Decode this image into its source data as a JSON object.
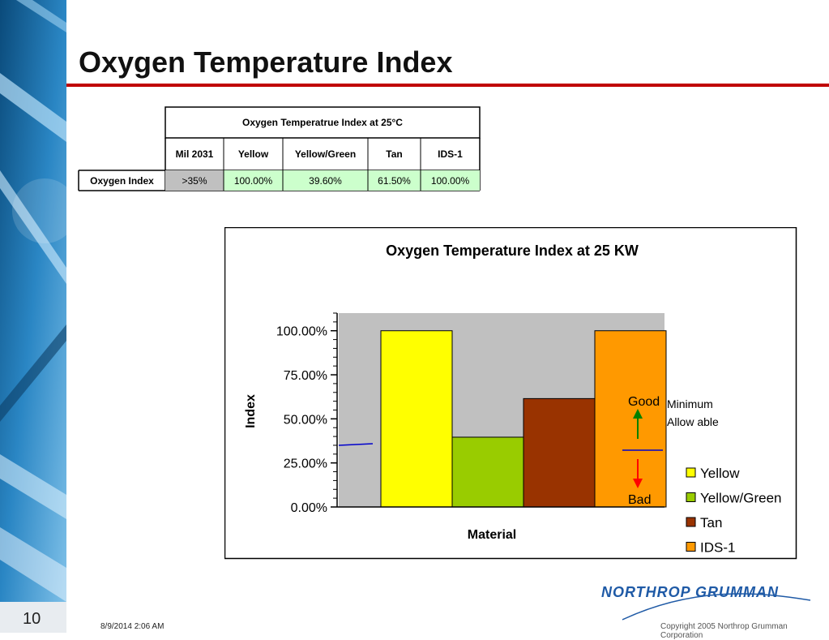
{
  "slide": {
    "page_number": "10",
    "title": "Oxygen Temperature Index",
    "date": "8/9/2014 2:06 AM",
    "copyright": "Copyright 2005 Northrop Grumman Corporation",
    "logo_text": "NORTHROP GRUMMAN"
  },
  "table": {
    "header": "Oxygen Temperatrue Index at 25°C",
    "columns": [
      "Mil 2031",
      "Yellow",
      "Yellow/Green",
      "Tan",
      "IDS-1"
    ],
    "row_label": "Oxygen Index",
    "values": [
      ">35%",
      "100.00%",
      "39.60%",
      "61.50%",
      "100.00%"
    ],
    "cell_colors": [
      "#c0c0c0",
      "#ccffcc",
      "#ccffcc",
      "#ccffcc",
      "#ccffcc"
    ]
  },
  "chart_data": {
    "type": "bar",
    "title": "Oxygen Temperature Index at 25 KW",
    "xlabel": "Material",
    "ylabel": "Index",
    "ylim": [
      0,
      1.1
    ],
    "yticks": [
      0,
      0.25,
      0.5,
      0.75,
      1.0
    ],
    "ytick_labels": [
      "0.00%",
      "25.00%",
      "50.00%",
      "75.00%",
      "100.00%"
    ],
    "minimum_allowable": 0.35,
    "series": [
      {
        "name": "Yellow",
        "value": 1.0,
        "color": "#ffff00"
      },
      {
        "name": "Yellow/Green",
        "value": 0.396,
        "color": "#99cc00"
      },
      {
        "name": "Tan",
        "value": 0.615,
        "color": "#993300"
      },
      {
        "name": "IDS-1",
        "value": 1.0,
        "color": "#ff9900"
      }
    ],
    "annotations": {
      "good": "Good",
      "bad": "Bad",
      "minimum_line1": "Minimum",
      "minimum_line2": "Allow able"
    },
    "plot_bg": "#c0c0c0",
    "legend_position": "bottom-right"
  }
}
